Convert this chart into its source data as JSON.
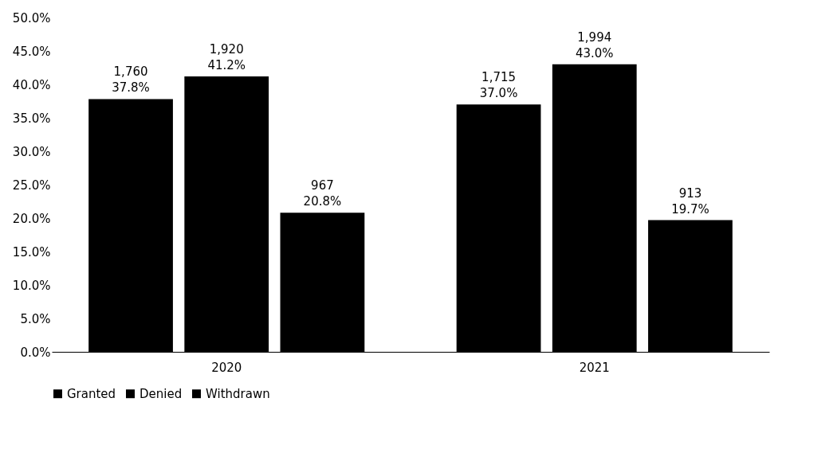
{
  "chart_data": {
    "type": "bar",
    "categories": [
      "2020",
      "2021"
    ],
    "series": [
      {
        "name": "Granted",
        "color": "#000000",
        "values": [
          37.8,
          37.0
        ],
        "value_labels": [
          "1,760\n37.8%",
          "1,715\n37.0%"
        ]
      },
      {
        "name": "Denied",
        "color": "#000000",
        "values": [
          41.2,
          43.0
        ],
        "value_labels": [
          "1,920\n41.2%",
          "1,994\n43.0%"
        ]
      },
      {
        "name": "Withdrawn",
        "color": "#000000",
        "values": [
          20.8,
          19.7
        ],
        "value_labels": [
          "967\n20.8%",
          "913\n19.7%"
        ]
      }
    ],
    "ylim": [
      0,
      50
    ],
    "yticks": [
      {
        "value": 0,
        "label": "0.0%"
      },
      {
        "value": 5,
        "label": "5.0%"
      },
      {
        "value": 10,
        "label": "10.0%"
      },
      {
        "value": 15,
        "label": "15.0%"
      },
      {
        "value": 20,
        "label": "20.0%"
      },
      {
        "value": 25,
        "label": "25.0%"
      },
      {
        "value": 30,
        "label": "30.0%"
      },
      {
        "value": 35,
        "label": "35.0%"
      },
      {
        "value": 40,
        "label": "40.0%"
      },
      {
        "value": 45,
        "label": "45.0%"
      },
      {
        "value": 50,
        "label": "50.0%"
      }
    ],
    "grid": false,
    "legend": "bottom"
  }
}
